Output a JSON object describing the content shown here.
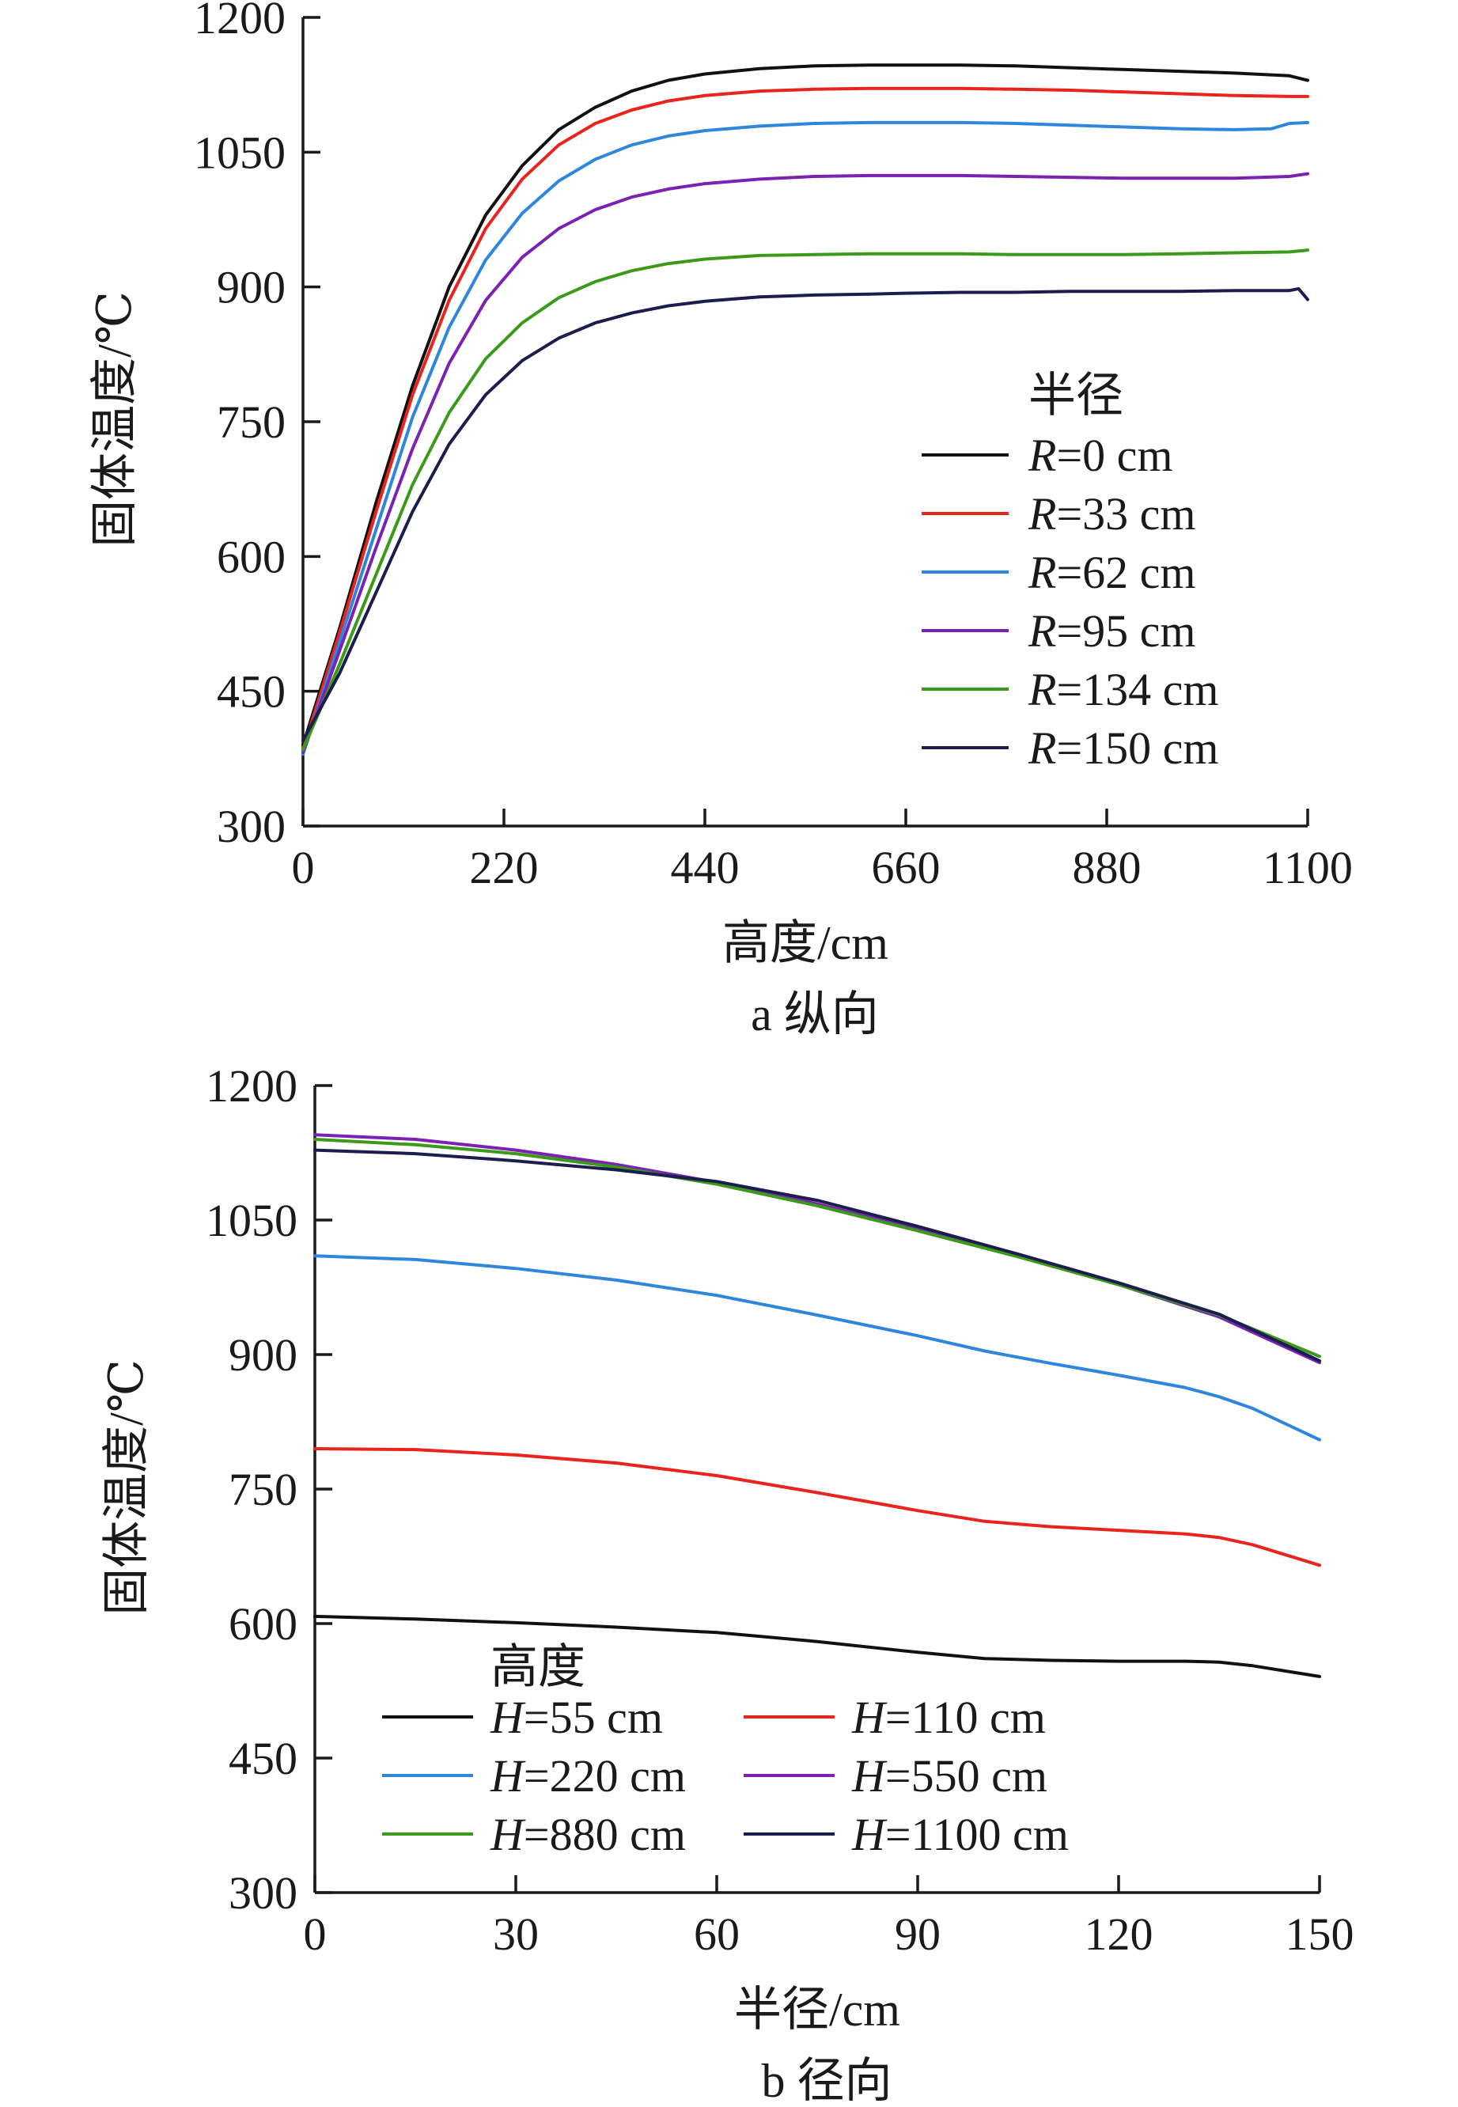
{
  "colors": {
    "black": "#111111",
    "red": "#e8241c",
    "blue": "#2f86dd",
    "purple": "#7b22b4",
    "green": "#3c9a1a",
    "navy": "#1a1d4e"
  },
  "chart_data": [
    {
      "type": "line",
      "caption": "a  纵向",
      "xlabel": "高度/cm",
      "ylabel": "固体温度/℃",
      "xlim": [
        0,
        1100
      ],
      "ylim": [
        300,
        1200
      ],
      "xticks": [
        0,
        220,
        440,
        660,
        880,
        1100
      ],
      "yticks": [
        300,
        450,
        600,
        750,
        900,
        1050,
        1200
      ],
      "legend": {
        "title": "半径",
        "placement": "center-right",
        "columns": 1
      },
      "series": [
        {
          "name_prefix": "R",
          "name_suffix": "=0 cm",
          "color": "#111111",
          "x": [
            0,
            40,
            80,
            120,
            160,
            200,
            240,
            280,
            320,
            360,
            400,
            440,
            500,
            560,
            620,
            660,
            720,
            780,
            840,
            900,
            960,
            1020,
            1080,
            1100
          ],
          "y": [
            390,
            520,
            660,
            790,
            900,
            980,
            1035,
            1075,
            1100,
            1118,
            1130,
            1137,
            1143,
            1146,
            1147,
            1147,
            1147,
            1146,
            1144,
            1142,
            1140,
            1138,
            1135,
            1130
          ]
        },
        {
          "name_prefix": "R",
          "name_suffix": "=33 cm",
          "color": "#e8241c",
          "x": [
            0,
            40,
            80,
            120,
            160,
            200,
            240,
            280,
            320,
            360,
            400,
            440,
            500,
            560,
            620,
            660,
            720,
            780,
            840,
            900,
            960,
            1020,
            1080,
            1100
          ],
          "y": [
            385,
            515,
            650,
            780,
            885,
            965,
            1020,
            1058,
            1082,
            1097,
            1107,
            1113,
            1118,
            1120,
            1121,
            1121,
            1121,
            1120,
            1119,
            1117,
            1115,
            1113,
            1112,
            1112
          ]
        },
        {
          "name_prefix": "R",
          "name_suffix": "=62 cm",
          "color": "#2f86dd",
          "x": [
            0,
            40,
            80,
            120,
            160,
            200,
            240,
            280,
            320,
            360,
            400,
            440,
            500,
            560,
            620,
            660,
            720,
            780,
            840,
            900,
            960,
            1020,
            1060,
            1080,
            1100
          ],
          "y": [
            380,
            505,
            630,
            755,
            855,
            930,
            982,
            1018,
            1042,
            1058,
            1068,
            1074,
            1079,
            1082,
            1083,
            1083,
            1083,
            1082,
            1080,
            1078,
            1076,
            1075,
            1076,
            1082,
            1083
          ]
        },
        {
          "name_prefix": "R",
          "name_suffix": "=95 cm",
          "color": "#7b22b4",
          "x": [
            0,
            40,
            80,
            120,
            160,
            200,
            240,
            280,
            320,
            360,
            400,
            440,
            500,
            560,
            620,
            660,
            720,
            780,
            840,
            900,
            960,
            1020,
            1080,
            1100
          ],
          "y": [
            382,
            495,
            610,
            720,
            815,
            885,
            933,
            965,
            986,
            1000,
            1009,
            1015,
            1020,
            1023,
            1024,
            1024,
            1024,
            1023,
            1022,
            1021,
            1021,
            1021,
            1023,
            1026
          ]
        },
        {
          "name_prefix": "R",
          "name_suffix": "=134 cm",
          "color": "#3c9a1a",
          "x": [
            0,
            40,
            80,
            120,
            160,
            200,
            240,
            280,
            320,
            360,
            400,
            440,
            500,
            560,
            620,
            660,
            720,
            780,
            840,
            900,
            960,
            1020,
            1080,
            1100
          ],
          "y": [
            385,
            480,
            580,
            680,
            760,
            820,
            860,
            888,
            906,
            918,
            926,
            931,
            935,
            936,
            937,
            937,
            937,
            936,
            936,
            936,
            937,
            938,
            939,
            941
          ]
        },
        {
          "name_prefix": "R",
          "name_suffix": "=150 cm",
          "color": "#1a1d4e",
          "x": [
            0,
            40,
            80,
            120,
            160,
            200,
            240,
            280,
            320,
            360,
            400,
            440,
            500,
            560,
            620,
            660,
            720,
            780,
            840,
            900,
            960,
            1020,
            1080,
            1090,
            1100
          ],
          "y": [
            395,
            470,
            560,
            650,
            725,
            780,
            818,
            843,
            860,
            871,
            879,
            884,
            889,
            891,
            892,
            893,
            894,
            894,
            895,
            895,
            895,
            896,
            896,
            898,
            886
          ]
        }
      ]
    },
    {
      "type": "line",
      "caption": "b  径向",
      "xlabel": "半径/cm",
      "ylabel": "固体温度/℃",
      "xlim": [
        0,
        150
      ],
      "ylim": [
        300,
        1200
      ],
      "xticks": [
        0,
        30,
        60,
        90,
        120,
        150
      ],
      "yticks": [
        300,
        450,
        600,
        750,
        900,
        1050,
        1200
      ],
      "legend": {
        "title": "高度",
        "placement": "lower-left",
        "columns": 2
      },
      "series": [
        {
          "name_prefix": "H",
          "name_suffix": "=55 cm",
          "color": "#111111",
          "x": [
            0,
            15,
            30,
            45,
            60,
            75,
            90,
            100,
            110,
            120,
            130,
            135,
            140,
            150
          ],
          "y": [
            608,
            605,
            601,
            596,
            590,
            580,
            568,
            561,
            559,
            558,
            558,
            557,
            553,
            541
          ]
        },
        {
          "name_prefix": "H",
          "name_suffix": "=110 cm",
          "color": "#e8241c",
          "x": [
            0,
            15,
            30,
            45,
            60,
            75,
            90,
            100,
            110,
            120,
            130,
            135,
            140,
            150
          ],
          "y": [
            795,
            794,
            788,
            779,
            765,
            746,
            726,
            714,
            708,
            704,
            700,
            696,
            688,
            665
          ]
        },
        {
          "name_prefix": "H",
          "name_suffix": "=220 cm",
          "color": "#2f86dd",
          "x": [
            0,
            15,
            30,
            45,
            60,
            75,
            90,
            100,
            110,
            120,
            130,
            135,
            140,
            150
          ],
          "y": [
            1010,
            1006,
            996,
            983,
            966,
            944,
            921,
            904,
            890,
            877,
            863,
            853,
            840,
            805
          ]
        },
        {
          "name_prefix": "H",
          "name_suffix": "=550 cm",
          "color": "#7b22b4",
          "x": [
            0,
            15,
            30,
            45,
            60,
            75,
            90,
            105,
            120,
            135,
            150
          ],
          "y": [
            1145,
            1140,
            1128,
            1112,
            1092,
            1068,
            1040,
            1010,
            978,
            942,
            891
          ]
        },
        {
          "name_prefix": "H",
          "name_suffix": "=880 cm",
          "color": "#3c9a1a",
          "x": [
            0,
            15,
            30,
            45,
            60,
            75,
            90,
            105,
            120,
            135,
            150
          ],
          "y": [
            1140,
            1134,
            1124,
            1109,
            1090,
            1066,
            1038,
            1009,
            978,
            944,
            898
          ]
        },
        {
          "name_prefix": "H",
          "name_suffix": "=1100 cm",
          "color": "#1a1d4e",
          "x": [
            0,
            15,
            30,
            45,
            60,
            75,
            90,
            105,
            120,
            135,
            150
          ],
          "y": [
            1128,
            1124,
            1116,
            1106,
            1093,
            1072,
            1043,
            1012,
            980,
            945,
            893
          ]
        }
      ]
    }
  ]
}
